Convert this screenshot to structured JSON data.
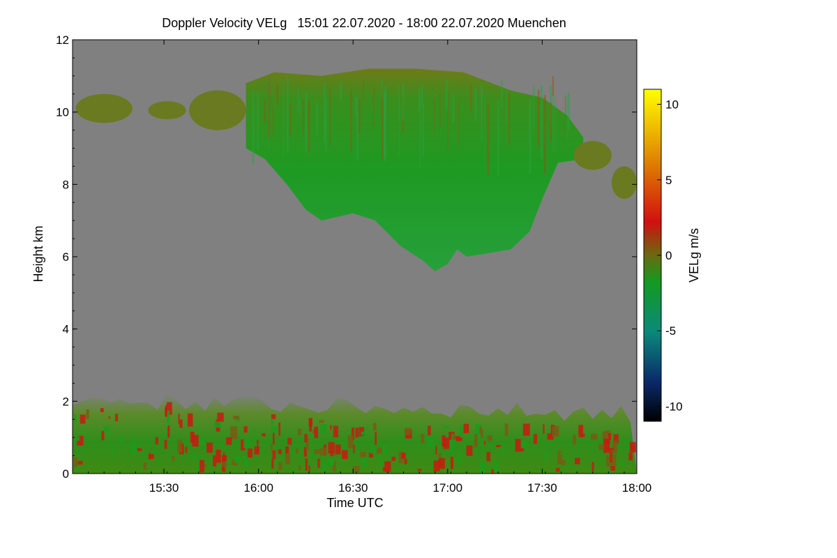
{
  "chart_data": {
    "type": "heatmap",
    "title": "Doppler Velocity VELg   15:01 22.07.2020 - 18:00 22.07.2020 Muenchen",
    "xlabel": "Time UTC",
    "ylabel": "Height km",
    "colorbar_label": "VELg m/s",
    "xlim": [
      "15:01",
      "18:00"
    ],
    "ylim": [
      0,
      12
    ],
    "clim": [
      -11,
      11
    ],
    "x_ticks": [
      "15:30",
      "16:00",
      "16:30",
      "17:00",
      "17:30",
      "18:00"
    ],
    "y_ticks": [
      "0",
      "2",
      "4",
      "6",
      "8",
      "10",
      "12"
    ],
    "colorbar_ticks": [
      "-10",
      "-5",
      "0",
      "5",
      "10"
    ],
    "background_color": "#808080",
    "colors": {
      "no_data": "#808080",
      "colormap": [
        "#000000",
        "#0a2a6a",
        "#0a8a7a",
        "#139a20",
        "#6a6a10",
        "#d01010",
        "#e08000",
        "#ffff00"
      ]
    },
    "features": [
      {
        "name": "ice-cloud",
        "mean_velocity": -1,
        "base_profile": [
          [
            "15:56",
            9.0
          ],
          [
            "16:02",
            8.7
          ],
          [
            "16:09",
            8.0
          ],
          [
            "16:15",
            7.3
          ],
          [
            "16:20",
            7.0
          ],
          [
            "16:30",
            7.2
          ],
          [
            "16:37",
            7.0
          ],
          [
            "16:45",
            6.3
          ],
          [
            "16:52",
            5.9
          ],
          [
            "16:56",
            5.6
          ],
          [
            "17:00",
            5.8
          ],
          [
            "17:03",
            6.2
          ],
          [
            "17:06",
            6.0
          ],
          [
            "17:13",
            6.1
          ],
          [
            "17:20",
            6.2
          ],
          [
            "17:26",
            6.7
          ],
          [
            "17:30",
            7.6
          ],
          [
            "17:35",
            8.6
          ],
          [
            "17:43",
            8.7
          ]
        ],
        "top_profile": [
          [
            "15:56",
            10.8
          ],
          [
            "16:05",
            11.1
          ],
          [
            "16:20",
            11.0
          ],
          [
            "16:35",
            11.2
          ],
          [
            "16:50",
            11.2
          ],
          [
            "17:05",
            11.1
          ],
          [
            "17:20",
            10.6
          ],
          [
            "17:30",
            10.4
          ],
          [
            "17:38",
            9.9
          ],
          [
            "17:43",
            9.3
          ]
        ]
      },
      {
        "name": "boundary-layer",
        "mean_velocity": 0,
        "top_height_km": 2.2
      }
    ]
  }
}
